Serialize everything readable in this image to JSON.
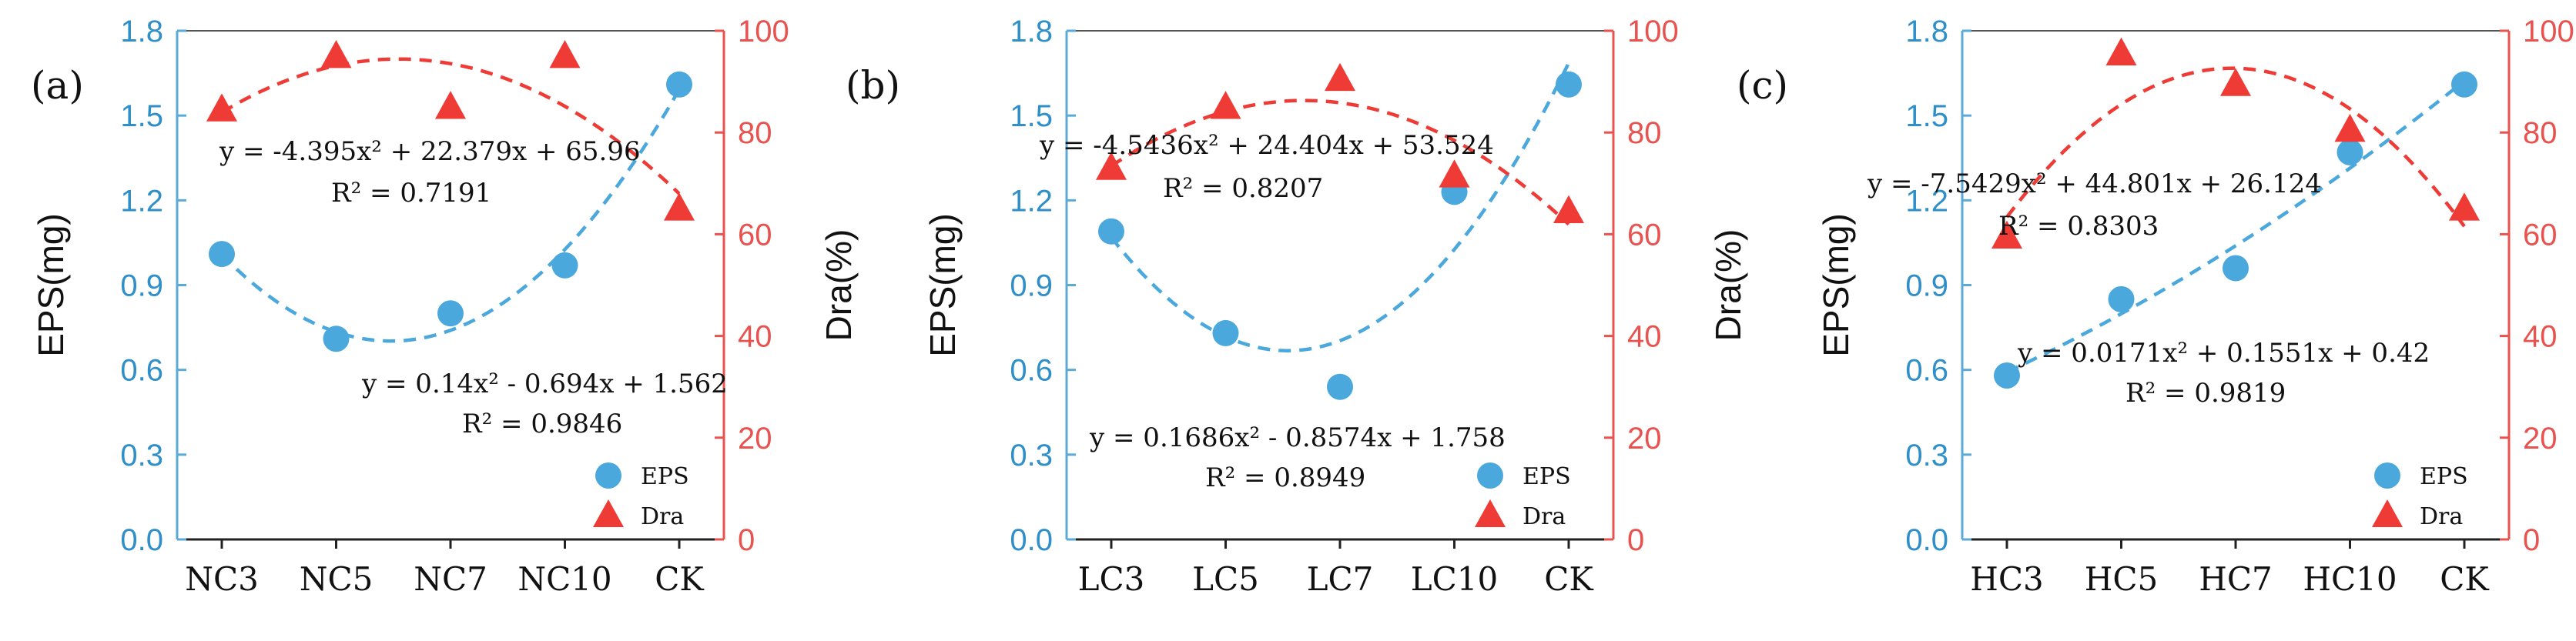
{
  "chart_data": [
    {
      "type": "scatter",
      "panel_label": "(a)",
      "categories": [
        "NC3",
        "NC5",
        "NC7",
        "NC10",
        "CK"
      ],
      "ylabel_left": "EPS(mg)",
      "ylabel_right": "Dra(%)",
      "ylim_left": [
        0,
        1.8
      ],
      "ylim_right": [
        0,
        100
      ],
      "yticks_left": [
        "0.0",
        "0.3",
        "0.6",
        "0.9",
        "1.2",
        "1.5",
        "1.8"
      ],
      "yticks_right": [
        "0",
        "20",
        "40",
        "60",
        "80",
        "100"
      ],
      "series": [
        {
          "name": "EPS",
          "axis": "left",
          "marker": "circle",
          "color": "#4aa8dc",
          "values": [
            1.01,
            0.71,
            0.8,
            0.97,
            1.61
          ],
          "fit": {
            "a": 0.14,
            "b": -0.694,
            "c": 1.562
          }
        },
        {
          "name": "Dra",
          "axis": "right",
          "marker": "triangle",
          "color": "#ef3b36",
          "values": [
            84.5,
            95,
            85,
            95,
            65
          ],
          "fit": {
            "a": -4.395,
            "b": 22.379,
            "c": 65.96
          }
        }
      ],
      "annotations": {
        "dra_eq": "y = -4.395x² + 22.379x + 65.96",
        "dra_r2": "R² = 0.7191",
        "eps_eq": "y = 0.14x² - 0.694x + 1.562",
        "eps_r2": "R² = 0.9846"
      },
      "legend": "bottom-right"
    },
    {
      "type": "scatter",
      "panel_label": "(b)",
      "categories": [
        "LC3",
        "LC5",
        "LC7",
        "LC10",
        "CK"
      ],
      "ylabel_left": "EPS(mg)",
      "ylabel_right": "Dra(%)",
      "ylim_left": [
        0,
        1.8
      ],
      "ylim_right": [
        0,
        100
      ],
      "yticks_left": [
        "0.0",
        "0.3",
        "0.6",
        "0.9",
        "1.2",
        "1.5",
        "1.8"
      ],
      "yticks_right": [
        "0",
        "20",
        "40",
        "60",
        "80",
        "100"
      ],
      "series": [
        {
          "name": "EPS",
          "axis": "left",
          "marker": "circle",
          "color": "#4aa8dc",
          "values": [
            1.09,
            0.73,
            0.54,
            1.23,
            1.61
          ],
          "fit": {
            "a": 0.1686,
            "b": -0.8574,
            "c": 1.758
          }
        },
        {
          "name": "Dra",
          "axis": "right",
          "marker": "triangle",
          "color": "#ef3b36",
          "values": [
            73,
            85,
            90.5,
            71.5,
            64.5
          ],
          "fit": {
            "a": -4.5436,
            "b": 24.404,
            "c": 53.524
          }
        }
      ],
      "annotations": {
        "dra_eq": "y = -4.5436x² + 24.404x + 53.524",
        "dra_r2": "R² = 0.8207",
        "eps_eq": "y = 0.1686x² - 0.8574x + 1.758",
        "eps_r2": "R² = 0.8949"
      },
      "legend": "bottom-right"
    },
    {
      "type": "scatter",
      "panel_label": "(c)",
      "categories": [
        "HC3",
        "HC5",
        "HC7",
        "HC10",
        "CK"
      ],
      "ylabel_left": "EPS(mg)",
      "ylabel_right": "Dra(%)",
      "ylim_left": [
        0,
        1.8
      ],
      "ylim_right": [
        0,
        100
      ],
      "yticks_left": [
        "0.0",
        "0.3",
        "0.6",
        "0.9",
        "1.2",
        "1.5",
        "1.8"
      ],
      "yticks_right": [
        "0",
        "20",
        "40",
        "60",
        "80",
        "100"
      ],
      "series": [
        {
          "name": "EPS",
          "axis": "left",
          "marker": "circle",
          "color": "#4aa8dc",
          "values": [
            0.58,
            0.85,
            0.96,
            1.37,
            1.61
          ],
          "fit": {
            "a": 0.0171,
            "b": 0.1551,
            "c": 0.42
          }
        },
        {
          "name": "Dra",
          "axis": "right",
          "marker": "triangle",
          "color": "#ef3b36",
          "values": [
            59.5,
            95.5,
            89.5,
            80.5,
            65
          ],
          "fit": {
            "a": -7.5429,
            "b": 44.801,
            "c": 26.124
          }
        }
      ],
      "annotations": {
        "dra_eq": "y = -7.5429x² + 44.801x + 26.124",
        "dra_r2": "R² = 0.8303",
        "eps_eq": "y = 0.0171x² + 0.1551x + 0.42",
        "eps_r2": "R² = 0.9819"
      },
      "legend": "bottom-right"
    }
  ]
}
